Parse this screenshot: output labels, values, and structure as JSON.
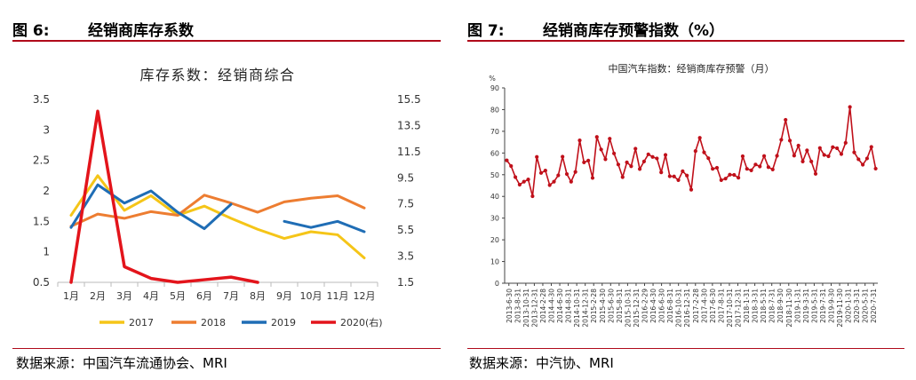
{
  "left": {
    "figure_label": "图 6:",
    "figure_title": "经销商库存系数",
    "source": "数据来源：中国汽车流通协会、MRI",
    "chart_data": {
      "type": "line",
      "title": "库存系数：经销商综合",
      "categories": [
        "1月",
        "2月",
        "3月",
        "4月",
        "5月",
        "6月",
        "7月",
        "8月",
        "9月",
        "10月",
        "11月",
        "12月"
      ],
      "ylim_left": [
        0.5,
        3.5
      ],
      "yticks_left": [
        "0.5",
        "1",
        "1.5",
        "2",
        "2.5",
        "3",
        "3.5"
      ],
      "ylim_right": [
        1.5,
        15.5
      ],
      "yticks_right": [
        "1.5",
        "3.5",
        "5.5",
        "7.5",
        "9.5",
        "11.5",
        "13.5",
        "15.5"
      ],
      "legend_position": "bottom",
      "series": [
        {
          "name": "2017",
          "color": "#f5c518",
          "axis": "left",
          "values": [
            1.6,
            2.25,
            1.68,
            1.92,
            1.6,
            1.75,
            1.55,
            1.37,
            1.22,
            1.33,
            1.28,
            0.9
          ]
        },
        {
          "name": "2018",
          "color": "#ed7d31",
          "axis": "left",
          "values": [
            1.42,
            1.62,
            1.55,
            1.66,
            1.6,
            1.93,
            1.8,
            1.65,
            1.82,
            1.88,
            1.92,
            1.72
          ]
        },
        {
          "name": "2019",
          "color": "#1f6db5",
          "axis": "left",
          "values": [
            1.4,
            2.1,
            1.8,
            2.0,
            1.65,
            1.38,
            1.78,
            null,
            1.5,
            1.4,
            1.5,
            1.33
          ]
        },
        {
          "name": "2020(右)",
          "color": "#e3141b",
          "axis": "right",
          "values": [
            1.5,
            14.6,
            2.7,
            1.8,
            1.5,
            1.7,
            1.9,
            1.5,
            null,
            null,
            null,
            null
          ]
        }
      ]
    }
  },
  "right": {
    "figure_label": "图 7:",
    "figure_title": "经销商库存预警指数（%）",
    "source": "数据来源：中汽协、MRI",
    "chart_data": {
      "type": "line",
      "title": "中国汽车指数：经销商库存预警（月）",
      "ylabel": "%",
      "ylim": [
        0,
        90
      ],
      "yticks": [
        "0",
        "10",
        "20",
        "30",
        "40",
        "50",
        "60",
        "70",
        "80",
        "90"
      ],
      "color": "#c0101a",
      "x_start": "2013-6-30",
      "xtick_labels": [
        "2013-6-30",
        "2013-8-31",
        "2013-10-31",
        "2013-12-31",
        "2014-2-28",
        "2014-4-30",
        "2014-6-30",
        "2014-8-31",
        "2014-10-31",
        "2014-12-31",
        "2015-2-28",
        "2015-4-30",
        "2015-6-30",
        "2015-8-31",
        "2015-10-31",
        "2015-12-31",
        "2016-2-29",
        "2016-4-30",
        "2016-6-30",
        "2016-8-31",
        "2016-10-31",
        "2016-12-31",
        "2017-2-28",
        "2017-4-30",
        "2017-6-30",
        "2017-8-31",
        "2017-10-31",
        "2017-12-31",
        "2018-1-31",
        "2018-3-31",
        "2018-5-31",
        "2018-7-31",
        "2018-9-30",
        "2018-11-30",
        "2019-1-31",
        "2019-3-31",
        "2019-5-31",
        "2019-7-31",
        "2019-9-30",
        "2019-11-30",
        "2020-1-31",
        "2020-3-31",
        "2020-5-31",
        "2020-7-31"
      ],
      "values": [
        56.6,
        54,
        48.9,
        45.4,
        46.8,
        47.8,
        40.1,
        58.2,
        50.8,
        51.9,
        45.2,
        46.8,
        49.7,
        58.3,
        50.3,
        46.8,
        51.3,
        65.8,
        55.7,
        56.5,
        48.5,
        67.4,
        61.6,
        57.1,
        66.6,
        59.8,
        54.7,
        48.9,
        55.7,
        53.9,
        62,
        52.6,
        56.1,
        59.4,
        58.2,
        57.5,
        51.1,
        59.1,
        49.3,
        49.2,
        47.5,
        51.6,
        49.6,
        43.1,
        60.9,
        67,
        60.3,
        57.6,
        52.7,
        53.2,
        47.5,
        48.2,
        50,
        49.9,
        48.6,
        58.5,
        52.7,
        52,
        54.7,
        53.8,
        58.6,
        53.5,
        52.4,
        58.7,
        66.1,
        75.3,
        65.7,
        58.8,
        63.4,
        56.1,
        61.2,
        56.1,
        50.4,
        62.3,
        59.1,
        58.5,
        62.7,
        62.2,
        59.5,
        64.7,
        81.2,
        60.3,
        57.1,
        54.6,
        57.5,
        62.8,
        52.8
      ]
    }
  }
}
